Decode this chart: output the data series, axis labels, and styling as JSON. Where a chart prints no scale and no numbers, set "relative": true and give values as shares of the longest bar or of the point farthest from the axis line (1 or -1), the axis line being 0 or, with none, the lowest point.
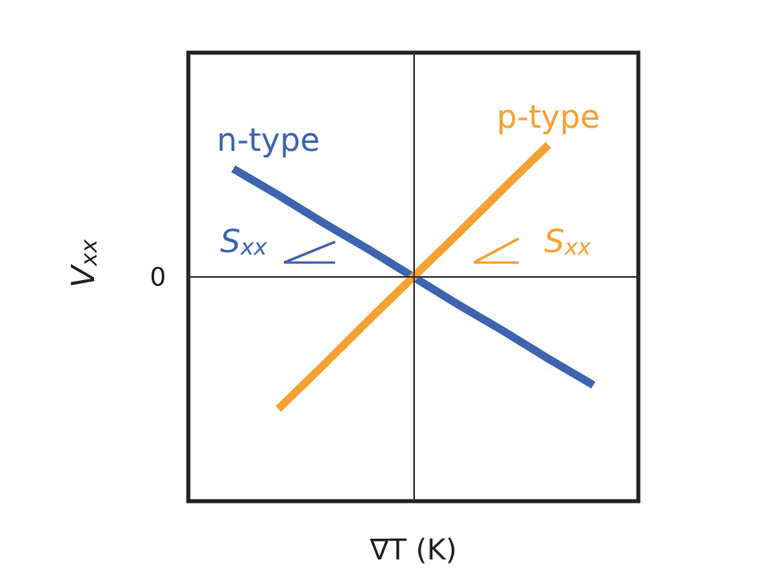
{
  "chart_data": {
    "type": "line",
    "relative": true,
    "xlabel": "∇T (K)",
    "ylabel": "V$_{xx}$",
    "categories": [
      null,
      null,
      null,
      null,
      null,
      null,
      null,
      null,
      null,
      null,
      null
    ],
    "series": [
      {
        "name": "n-type",
        "color": "#3e64ae",
        "values": [
          null,
          0.82,
          0.62,
          0.41,
          0.21,
          0,
          -0.21,
          -0.41,
          -0.62,
          -0.82,
          null
        ]
      },
      {
        "name": "p-type",
        "color": "#f5a132",
        "values": [
          null,
          null,
          -1,
          -0.67,
          -0.33,
          0,
          0.33,
          0.67,
          1,
          null,
          null
        ]
      }
    ],
    "ref_lines": [
      {
        "axis": "y",
        "value": 0,
        "label": "0"
      },
      {
        "axis": "x"
      }
    ],
    "annotations": [
      "S$_{xx}$",
      "S$_{xx}$"
    ],
    "legend": false,
    "marker": "none",
    "line_style": "solid",
    "grid": false
  }
}
